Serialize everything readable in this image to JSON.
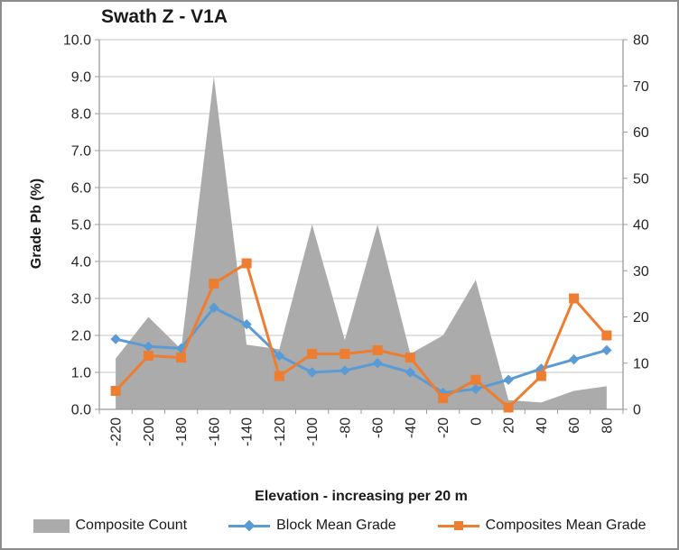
{
  "chart": {
    "title": "Swath Z - V1A",
    "y_left_title": "Grade Pb (%)",
    "x_title": "Elevation - increasing per 20 m"
  },
  "colors": {
    "area_gray": "#ABABAB",
    "line_blue": "#5B9BD5",
    "line_orange": "#ED7D31",
    "gridline": "#c3c3c3",
    "axis_line": "#9b9b9b",
    "tick_text": "#262626"
  },
  "chart_data": {
    "type": "combo",
    "title": "Swath Z - V1A",
    "xlabel": "Elevation - increasing per 20 m",
    "ylabel_left": "Grade Pb (%)",
    "categories": [
      "-220",
      "-200",
      "-180",
      "-160",
      "-140",
      "-120",
      "-100",
      "-80",
      "-60",
      "-40",
      "-20",
      "0",
      "20",
      "40",
      "60",
      "80"
    ],
    "axes": {
      "left": {
        "min": 0,
        "max": 10,
        "step": 1,
        "decimals": 1
      },
      "right": {
        "min": 0,
        "max": 80,
        "step": 10,
        "decimals": 0
      }
    },
    "grid": true,
    "legend_position": "bottom",
    "series": [
      {
        "name": "Composite Count",
        "type": "area",
        "axis": "right",
        "color": "#ABABAB",
        "values": [
          11,
          20,
          13,
          72,
          14,
          13,
          40,
          15,
          40,
          12,
          16,
          28,
          2,
          1.5,
          4,
          5
        ]
      },
      {
        "name": "Block Mean Grade",
        "type": "line",
        "marker": "diamond",
        "axis": "left",
        "color": "#5B9BD5",
        "values": [
          1.9,
          1.7,
          1.65,
          2.75,
          2.3,
          1.45,
          1.0,
          1.05,
          1.25,
          1.0,
          0.45,
          0.55,
          0.8,
          1.1,
          1.35,
          1.6
        ]
      },
      {
        "name": "Composites Mean Grade",
        "type": "line",
        "marker": "square",
        "axis": "left",
        "color": "#ED7D31",
        "values": [
          0.5,
          1.45,
          1.4,
          3.4,
          3.95,
          0.9,
          1.5,
          1.5,
          1.6,
          1.4,
          0.3,
          0.8,
          0.05,
          0.9,
          3.0,
          2.0
        ]
      }
    ]
  }
}
